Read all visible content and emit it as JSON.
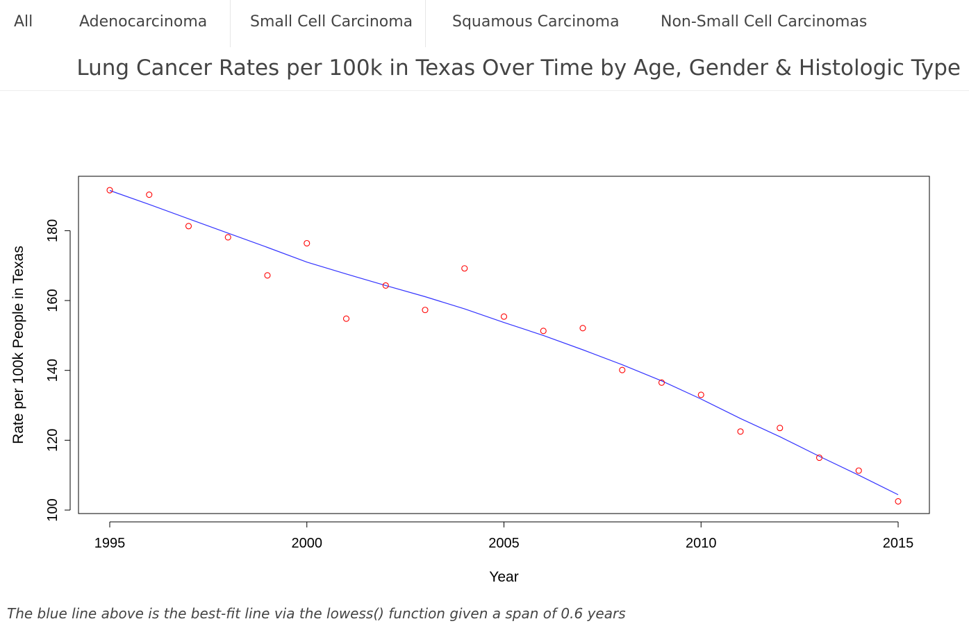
{
  "tabs": [
    {
      "label": "All"
    },
    {
      "label": "Adenocarcinoma"
    },
    {
      "label": "Small Cell Carcinoma"
    },
    {
      "label": "Squamous Carcinoma"
    },
    {
      "label": "Non-Small Cell Carcinomas"
    }
  ],
  "page": {
    "title": "Lung Cancer Rates per 100k in Texas Over Time by Age, Gender & Histologic Type",
    "caption": "The blue line above is the best-fit line via the lowess() function given a span of 0.6 years"
  },
  "colors": {
    "points": "#ff0000",
    "fit_line": "#3333ff",
    "axis": "#000000"
  },
  "chart_data": {
    "type": "scatter",
    "title": "",
    "xlabel": "Year",
    "ylabel": "Rate per 100k People in Texas",
    "xlim": [
      1995,
      2015
    ],
    "ylim": [
      100,
      192
    ],
    "x_ticks": [
      1995,
      2000,
      2005,
      2010,
      2015
    ],
    "y_ticks": [
      100,
      120,
      140,
      160,
      180
    ],
    "grid": false,
    "points": {
      "x": [
        1995,
        1996,
        1997,
        1998,
        1999,
        2000,
        2001,
        2002,
        2003,
        2004,
        2005,
        2006,
        2007,
        2008,
        2009,
        2010,
        2011,
        2012,
        2013,
        2014,
        2015
      ],
      "y": [
        191.6,
        190.3,
        181.3,
        178.1,
        167.2,
        176.4,
        154.8,
        164.3,
        157.3,
        169.2,
        155.4,
        151.3,
        152.1,
        140.1,
        136.5,
        133.0,
        122.5,
        123.5,
        115.0,
        111.3,
        102.5
      ]
    },
    "fit_line": {
      "x": [
        1995,
        1996,
        1997,
        1998,
        1999,
        2000,
        2001,
        2002,
        2003,
        2004,
        2005,
        2006,
        2007,
        2008,
        2009,
        2010,
        2011,
        2012,
        2013,
        2014,
        2015
      ],
      "y": [
        191.5,
        187.5,
        183.4,
        179.3,
        175.2,
        171.0,
        167.6,
        164.3,
        161.1,
        157.6,
        153.7,
        150.0,
        145.9,
        141.6,
        137.0,
        131.8,
        126.2,
        121.0,
        115.4,
        110.0,
        104.4
      ]
    }
  }
}
